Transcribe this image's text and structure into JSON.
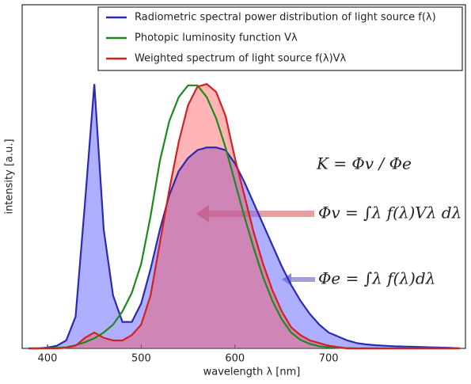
{
  "chart_data": {
    "type": "line",
    "xlabel": "wavelength λ [nm]",
    "ylabel": "intensity [a.u.]",
    "xlim": [
      373,
      846
    ],
    "xticks": [
      400,
      500,
      600,
      700
    ],
    "ylim": [
      0,
      1.3
    ],
    "legend": "top",
    "x": [
      380,
      390,
      400,
      410,
      420,
      430,
      440,
      450,
      460,
      470,
      480,
      490,
      500,
      510,
      520,
      530,
      540,
      550,
      560,
      570,
      580,
      590,
      600,
      610,
      620,
      630,
      640,
      650,
      660,
      670,
      680,
      690,
      700,
      710,
      720,
      730,
      740,
      750,
      760,
      770,
      780,
      790,
      800,
      810,
      820,
      830,
      840
    ],
    "series": [
      {
        "name": "Radiometric spectral power distribution of light source f(λ)",
        "color": "#2a2ab4",
        "fill": "rgba(110,110,255,0.55)",
        "values": [
          0,
          0,
          0.003,
          0.01,
          0.03,
          0.12,
          0.55,
          1.0,
          0.45,
          0.2,
          0.1,
          0.1,
          0.17,
          0.3,
          0.45,
          0.58,
          0.67,
          0.72,
          0.75,
          0.76,
          0.76,
          0.75,
          0.7,
          0.63,
          0.55,
          0.47,
          0.39,
          0.31,
          0.24,
          0.18,
          0.13,
          0.09,
          0.06,
          0.045,
          0.03,
          0.02,
          0.015,
          0.012,
          0.01,
          0.008,
          0.007,
          0.006,
          0.005,
          0.004,
          0.003,
          0.002,
          0
        ]
      },
      {
        "name": "Photopic luminosity function Vλ",
        "color": "#1e8a1e",
        "values": [
          0,
          0,
          0.001,
          0.002,
          0.004,
          0.012,
          0.023,
          0.038,
          0.06,
          0.09,
          0.14,
          0.21,
          0.32,
          0.5,
          0.71,
          0.86,
          0.95,
          0.995,
          0.995,
          0.95,
          0.87,
          0.76,
          0.63,
          0.5,
          0.38,
          0.27,
          0.18,
          0.11,
          0.06,
          0.032,
          0.017,
          0.008,
          0.004,
          0.002,
          0.001,
          0,
          0,
          0,
          0,
          0,
          0,
          0,
          0,
          0,
          0,
          0,
          0
        ]
      },
      {
        "name": "Weighted spectrum of light source f(λ)Vλ",
        "color": "#d42020",
        "fill": "rgba(255,70,70,0.4)",
        "values": [
          0,
          0,
          0,
          0,
          0.002,
          0.01,
          0.04,
          0.06,
          0.04,
          0.03,
          0.03,
          0.05,
          0.09,
          0.2,
          0.4,
          0.6,
          0.78,
          0.92,
          0.99,
          1.0,
          0.97,
          0.88,
          0.72,
          0.58,
          0.44,
          0.32,
          0.22,
          0.14,
          0.08,
          0.05,
          0.03,
          0.02,
          0.01,
          0.005,
          0,
          0,
          0,
          0,
          0,
          0,
          0,
          0,
          0,
          0,
          0,
          0,
          0
        ]
      }
    ],
    "annotations": [
      "K = Φv / Φe",
      "Φv = ∫λ f(λ)Vλ dλ",
      "Φe = ∫λ f(λ)dλ"
    ]
  }
}
